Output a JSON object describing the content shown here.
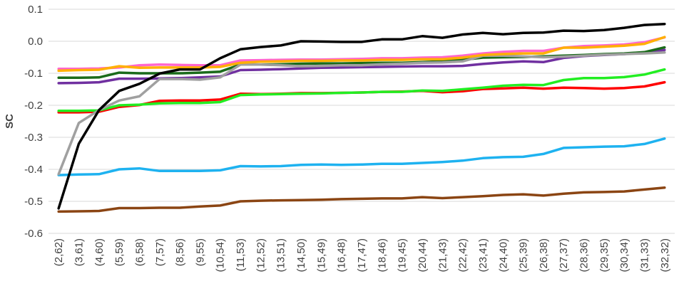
{
  "chart_data": {
    "type": "line",
    "title": "",
    "xlabel": "",
    "ylabel": "SC",
    "ylim": [
      -0.6,
      0.1
    ],
    "ytick_step": 0.1,
    "grid": true,
    "legend": "none",
    "categories": [
      "(2,62)",
      "(3,61)",
      "(4,60)",
      "(5,59)",
      "(6,58)",
      "(7,57)",
      "(8,56)",
      "(9,55)",
      "(10,54)",
      "(11,53)",
      "(12,52)",
      "(13,51)",
      "(14,50)",
      "(15,49)",
      "(16,48)",
      "(17,47)",
      "(18,46)",
      "(19,45)",
      "(20,44)",
      "(21,43)",
      "(22,42)",
      "(23,41)",
      "(24,40)",
      "(25,39)",
      "(26,38)",
      "(27,37)",
      "(28,36)",
      "(29,35)",
      "(30,34)",
      "(31,33)",
      "(32,32)"
    ],
    "series": [
      {
        "color": "#8B4513",
        "values": [
          -0.532,
          -0.531,
          -0.53,
          -0.521,
          -0.521,
          -0.52,
          -0.52,
          -0.516,
          -0.513,
          -0.5,
          -0.498,
          -0.497,
          -0.496,
          -0.495,
          -0.493,
          -0.492,
          -0.491,
          -0.491,
          -0.487,
          -0.49,
          -0.487,
          -0.484,
          -0.48,
          -0.478,
          -0.482,
          -0.476,
          -0.472,
          -0.471,
          -0.469,
          -0.463,
          -0.457
        ]
      },
      {
        "color": "#1EB2F0",
        "values": [
          -0.418,
          -0.416,
          -0.415,
          -0.4,
          -0.397,
          -0.405,
          -0.405,
          -0.405,
          -0.403,
          -0.39,
          -0.391,
          -0.39,
          -0.386,
          -0.385,
          -0.386,
          -0.385,
          -0.383,
          -0.383,
          -0.38,
          -0.377,
          -0.373,
          -0.365,
          -0.362,
          -0.361,
          -0.352,
          -0.333,
          -0.331,
          -0.329,
          -0.328,
          -0.321,
          -0.304
        ]
      },
      {
        "color": "#FF0000",
        "values": [
          -0.222,
          -0.222,
          -0.22,
          -0.205,
          -0.199,
          -0.186,
          -0.185,
          -0.185,
          -0.182,
          -0.164,
          -0.165,
          -0.164,
          -0.162,
          -0.162,
          -0.161,
          -0.16,
          -0.158,
          -0.157,
          -0.155,
          -0.159,
          -0.156,
          -0.149,
          -0.147,
          -0.145,
          -0.148,
          -0.145,
          -0.146,
          -0.148,
          -0.146,
          -0.141,
          -0.128
        ]
      },
      {
        "color": "#22EE22",
        "values": [
          -0.217,
          -0.217,
          -0.216,
          -0.2,
          -0.198,
          -0.194,
          -0.193,
          -0.193,
          -0.19,
          -0.168,
          -0.166,
          -0.165,
          -0.164,
          -0.163,
          -0.161,
          -0.16,
          -0.158,
          -0.158,
          -0.154,
          -0.155,
          -0.15,
          -0.145,
          -0.139,
          -0.136,
          -0.137,
          -0.121,
          -0.115,
          -0.115,
          -0.112,
          -0.104,
          -0.088
        ]
      },
      {
        "color": "#7030A0",
        "values": [
          -0.131,
          -0.13,
          -0.128,
          -0.117,
          -0.117,
          -0.116,
          -0.115,
          -0.113,
          -0.11,
          -0.09,
          -0.089,
          -0.087,
          -0.085,
          -0.083,
          -0.082,
          -0.081,
          -0.08,
          -0.079,
          -0.078,
          -0.078,
          -0.077,
          -0.071,
          -0.066,
          -0.063,
          -0.065,
          -0.052,
          -0.046,
          -0.043,
          -0.04,
          -0.035,
          -0.027
        ]
      },
      {
        "color": "#1A6B1A",
        "values": [
          -0.114,
          -0.114,
          -0.113,
          -0.098,
          -0.1,
          -0.1,
          -0.1,
          -0.098,
          -0.095,
          -0.073,
          -0.073,
          -0.072,
          -0.07,
          -0.069,
          -0.069,
          -0.068,
          -0.067,
          -0.067,
          -0.065,
          -0.063,
          -0.058,
          -0.051,
          -0.05,
          -0.049,
          -0.047,
          -0.045,
          -0.043,
          -0.04,
          -0.038,
          -0.034,
          -0.019
        ]
      },
      {
        "color": "#A0A0A0",
        "values": [
          -0.415,
          -0.255,
          -0.215,
          -0.185,
          -0.172,
          -0.118,
          -0.118,
          -0.12,
          -0.113,
          -0.073,
          -0.073,
          -0.075,
          -0.078,
          -0.077,
          -0.075,
          -0.075,
          -0.072,
          -0.07,
          -0.067,
          -0.066,
          -0.063,
          -0.045,
          -0.045,
          -0.047,
          -0.05,
          -0.048,
          -0.045,
          -0.042,
          -0.04,
          -0.038,
          -0.035
        ]
      },
      {
        "color": "#FF66CC",
        "values": [
          -0.086,
          -0.086,
          -0.085,
          -0.082,
          -0.075,
          -0.073,
          -0.074,
          -0.075,
          -0.075,
          -0.06,
          -0.059,
          -0.058,
          -0.057,
          -0.057,
          -0.056,
          -0.055,
          -0.053,
          -0.053,
          -0.051,
          -0.05,
          -0.045,
          -0.038,
          -0.033,
          -0.03,
          -0.03,
          -0.02,
          -0.015,
          -0.013,
          -0.01,
          -0.003,
          0.012
        ]
      },
      {
        "color": "#FFB000",
        "values": [
          -0.092,
          -0.09,
          -0.089,
          -0.078,
          -0.083,
          -0.082,
          -0.082,
          -0.082,
          -0.08,
          -0.067,
          -0.064,
          -0.063,
          -0.061,
          -0.061,
          -0.06,
          -0.06,
          -0.058,
          -0.058,
          -0.056,
          -0.056,
          -0.051,
          -0.043,
          -0.04,
          -0.038,
          -0.038,
          -0.02,
          -0.02,
          -0.017,
          -0.014,
          -0.008,
          0.013
        ]
      },
      {
        "color": "#000000",
        "values": [
          -0.522,
          -0.32,
          -0.215,
          -0.155,
          -0.133,
          -0.101,
          -0.088,
          -0.088,
          -0.053,
          -0.025,
          -0.018,
          -0.013,
          0.0,
          -0.001,
          -0.002,
          -0.002,
          0.006,
          0.006,
          0.016,
          0.011,
          0.021,
          0.026,
          0.022,
          0.026,
          0.027,
          0.033,
          0.032,
          0.035,
          0.042,
          0.051,
          0.054
        ]
      }
    ]
  }
}
